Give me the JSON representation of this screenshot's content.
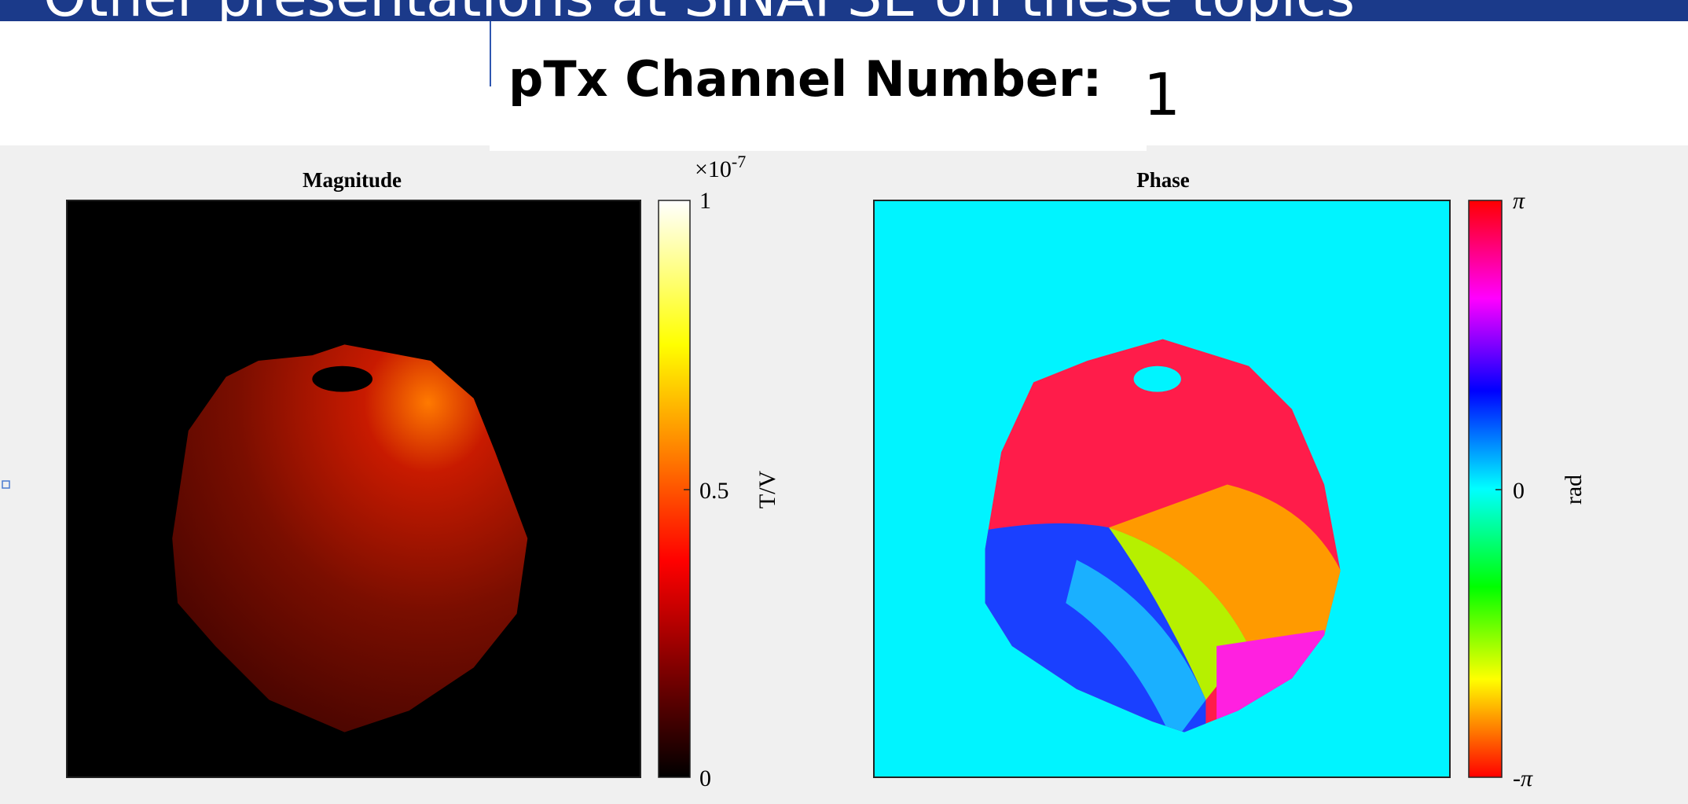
{
  "banner": {
    "text": "Other presentations at SINAPSE on these topics"
  },
  "header": {
    "label": "pTx Channel Number:",
    "value": "1"
  },
  "plots": [
    {
      "title": "Magnitude",
      "colorbar": {
        "multiplier": "×10",
        "exponent": "-7",
        "ticks": [
          "1",
          "0.5",
          "0"
        ],
        "label": "T/V"
      }
    },
    {
      "title": "Phase",
      "colorbar": {
        "ticks": [
          "π",
          "0",
          "-π"
        ],
        "label": "rad"
      }
    }
  ]
}
